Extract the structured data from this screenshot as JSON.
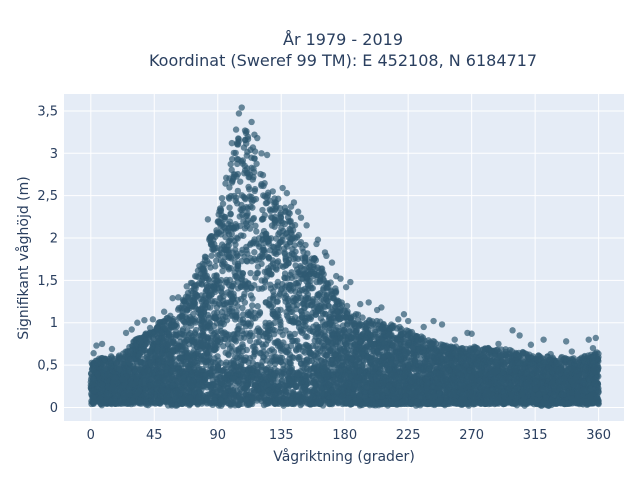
{
  "chart_data": {
    "type": "scatter",
    "title": [
      "År 1979 - 2019",
      "Koordinat (Sweref 99 TM): E 452108, N 6184717"
    ],
    "xlabel": "Vågriktning (grader)",
    "ylabel": "Signifikant våghöjd (m)",
    "xlim": [
      -19,
      378
    ],
    "ylim": [
      -0.16,
      3.7
    ],
    "grid": true,
    "x_ticks": [
      0,
      45,
      90,
      135,
      180,
      225,
      270,
      315,
      360
    ],
    "x_tick_labels": [
      "0",
      "45",
      "90",
      "135",
      "180",
      "225",
      "270",
      "315",
      "360"
    ],
    "y_ticks": [
      0,
      0.5,
      1,
      1.5,
      2,
      2.5,
      3,
      3.5
    ],
    "y_tick_labels": [
      "0",
      "0,5",
      "1",
      "1,5",
      "2",
      "2,5",
      "3",
      "3,5"
    ],
    "colors": {
      "plot_bg": "#e5ecf6",
      "grid": "#ffffff",
      "marker": "#2f5a72",
      "text": "#2a3f5f"
    },
    "marker_opacity": 0.7,
    "upper_envelope": {
      "x": [
        0,
        10,
        20,
        30,
        45,
        60,
        70,
        80,
        90,
        100,
        105,
        110,
        115,
        120,
        125,
        130,
        135,
        140,
        150,
        160,
        170,
        180,
        195,
        210,
        225,
        240,
        255,
        270,
        285,
        300,
        315,
        330,
        345,
        360
      ],
      "y": [
        0.55,
        0.6,
        0.62,
        0.78,
        0.98,
        1.12,
        1.4,
        1.78,
        2.3,
        2.95,
        3.2,
        3.3,
        3.1,
        2.85,
        2.6,
        2.5,
        2.45,
        2.35,
        2.0,
        1.75,
        1.5,
        1.22,
        1.05,
        1.0,
        0.92,
        0.8,
        0.72,
        0.72,
        0.7,
        0.68,
        0.62,
        0.6,
        0.58,
        0.66
      ]
    },
    "points": [
      [
        107,
        3.54
      ],
      [
        105,
        3.47
      ],
      [
        114,
        3.37
      ],
      [
        103,
        3.28
      ],
      [
        110,
        3.24
      ],
      [
        116,
        3.22
      ],
      [
        118,
        3.18
      ],
      [
        100,
        3.12
      ],
      [
        121,
        3.0
      ],
      [
        125,
        2.98
      ],
      [
        136,
        2.59
      ],
      [
        139,
        2.53
      ],
      [
        144,
        2.42
      ],
      [
        142,
        2.37
      ],
      [
        147,
        2.31
      ],
      [
        141,
        2.29
      ],
      [
        149,
        2.24
      ],
      [
        153,
        2.15
      ],
      [
        161,
        1.98
      ],
      [
        160,
        1.93
      ],
      [
        166,
        1.83
      ],
      [
        167,
        1.79
      ],
      [
        171,
        1.71
      ],
      [
        174,
        1.55
      ],
      [
        177,
        1.52
      ],
      [
        184,
        1.48
      ],
      [
        181,
        1.42
      ],
      [
        191,
        1.22
      ],
      [
        197,
        1.24
      ],
      [
        206,
        1.18
      ],
      [
        203,
        1.15
      ],
      [
        222,
        1.1
      ],
      [
        218,
        1.04
      ],
      [
        225,
        1.02
      ],
      [
        236,
        0.95
      ],
      [
        243,
        1.02
      ],
      [
        249,
        0.98
      ],
      [
        270,
        0.87
      ],
      [
        267,
        0.88
      ],
      [
        299,
        0.91
      ],
      [
        304,
        0.85
      ],
      [
        321,
        0.8
      ],
      [
        337,
        0.78
      ],
      [
        353,
        0.8
      ],
      [
        358,
        0.82
      ],
      [
        4,
        0.73
      ],
      [
        8,
        0.75
      ],
      [
        29,
        0.92
      ],
      [
        33,
        1.0
      ],
      [
        38,
        1.03
      ],
      [
        44,
        1.04
      ],
      [
        58,
        1.29
      ],
      [
        62,
        1.3
      ],
      [
        71,
        1.47
      ],
      [
        74,
        1.55
      ],
      [
        77,
        1.67
      ],
      [
        81,
        1.78
      ],
      [
        84,
        1.98
      ],
      [
        86,
        2.02
      ],
      [
        90,
        2.19
      ],
      [
        93,
        2.47
      ],
      [
        96,
        2.71
      ],
      [
        83,
        2.22
      ],
      [
        76,
        1.54
      ],
      [
        68,
        1.43
      ],
      [
        52,
        1.13
      ],
      [
        25,
        0.88
      ],
      [
        15,
        0.69
      ],
      [
        2,
        0.64
      ],
      [
        356,
        0.7
      ],
      [
        341,
        0.66
      ],
      [
        326,
        0.63
      ],
      [
        312,
        0.74
      ],
      [
        289,
        0.75
      ],
      [
        278,
        0.68
      ],
      [
        258,
        0.8
      ],
      [
        231,
        0.84
      ],
      [
        212,
        0.93
      ],
      [
        188,
        1.1
      ],
      [
        156,
        1.6
      ],
      [
        129,
        2.55
      ]
    ]
  }
}
